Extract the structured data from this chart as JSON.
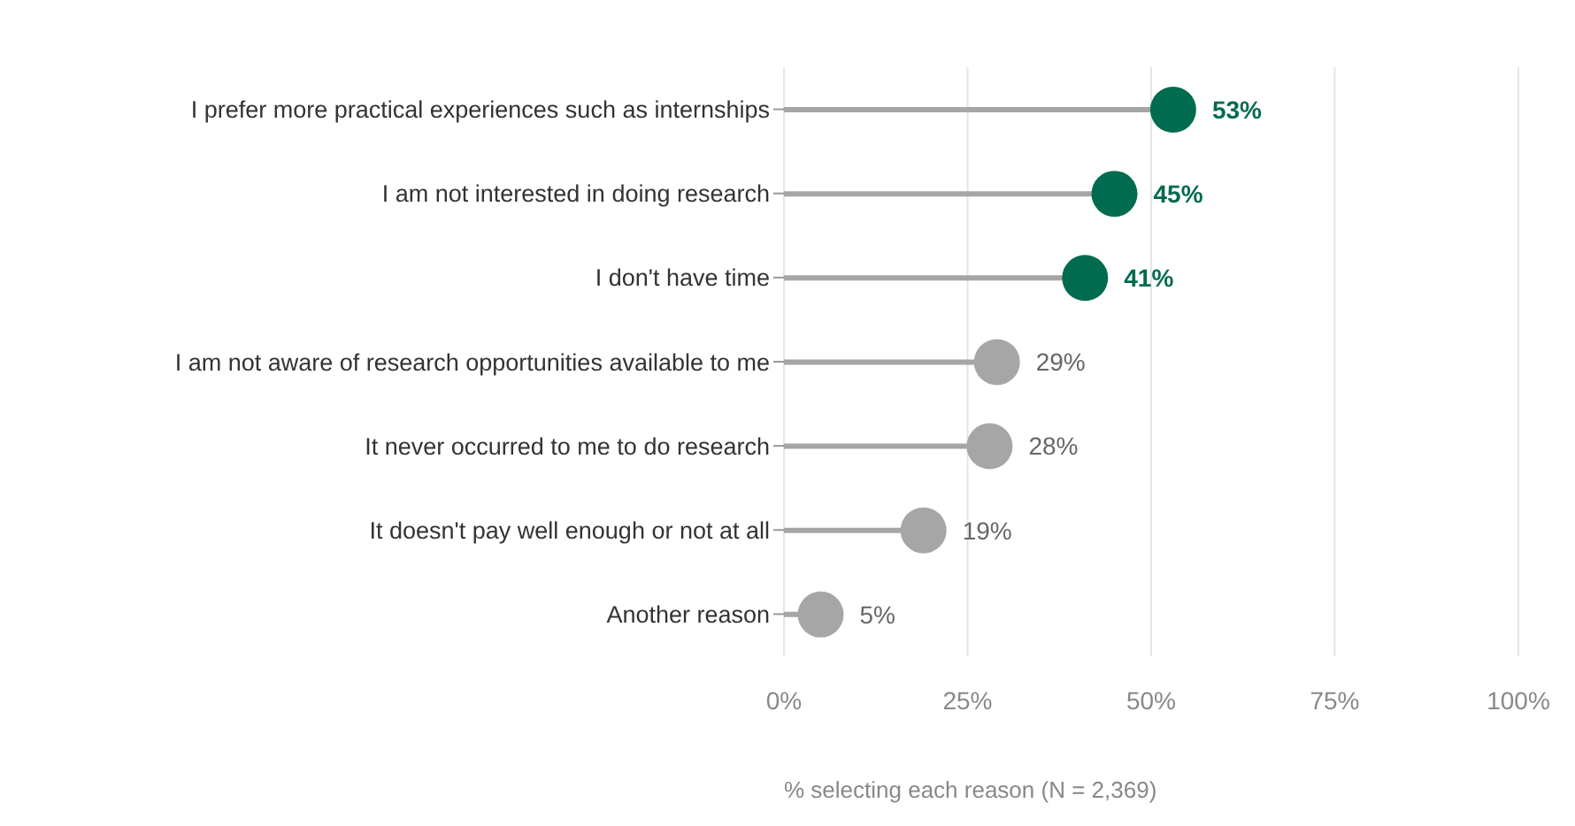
{
  "chart_data": {
    "type": "lollipop",
    "orientation": "horizontal",
    "categories": [
      "I prefer more practical experiences such as internships",
      "I am not interested in doing research",
      "I don't have time",
      "I am not aware of research opportunities available to me",
      "It never occurred to me to do research",
      "It doesn't pay well enough or not at all",
      "Another reason"
    ],
    "values": [
      53,
      45,
      41,
      29,
      28,
      19,
      5
    ],
    "colors": [
      "#006b4f",
      "#006b4f",
      "#006b4f",
      "#a6a6a6",
      "#a6a6a6",
      "#a6a6a6",
      "#a6a6a6"
    ],
    "value_labels": [
      "53%",
      "45%",
      "41%",
      "29%",
      "28%",
      "19%",
      "5%"
    ],
    "xlim": [
      0,
      100
    ],
    "xticks": [
      {
        "value": 0,
        "label": "0%"
      },
      {
        "value": 25,
        "label": "25%"
      },
      {
        "value": 50,
        "label": "50%"
      },
      {
        "value": 75,
        "label": "75%"
      },
      {
        "value": 100,
        "label": "100%"
      }
    ],
    "xlabel": "% selecting each reason (N = 2,369)",
    "grid": "x",
    "marker": "circle"
  }
}
